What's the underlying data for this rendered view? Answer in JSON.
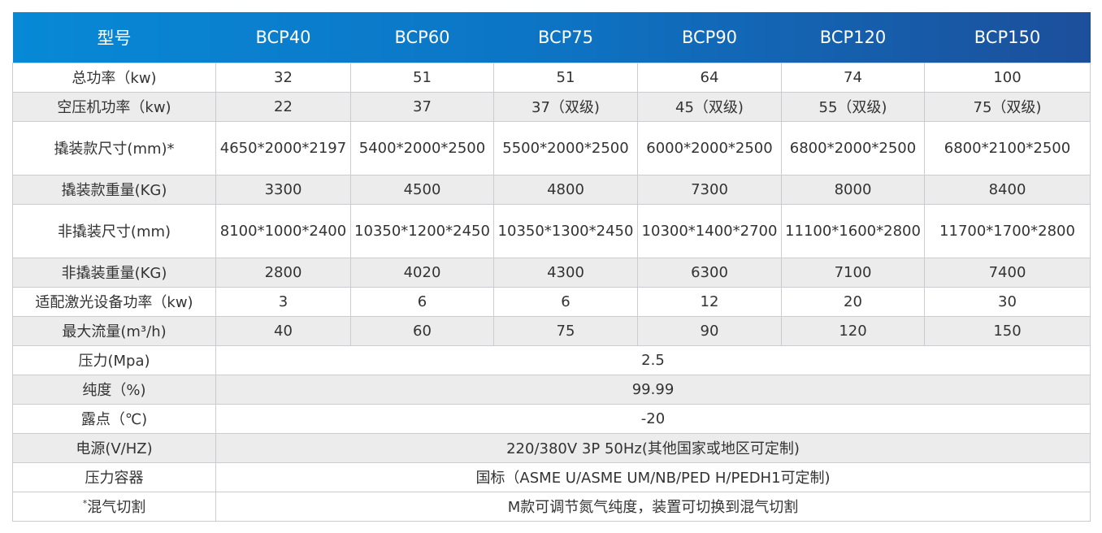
{
  "header": [
    "型号",
    "BCP40",
    "BCP60",
    "BCP75",
    "BCP90",
    "BCP120",
    "BCP150"
  ],
  "colors": {
    "header_start": "#0789d6",
    "header_end": "#1c4f9b",
    "stripe": "#ececec",
    "border": "#c9cdd3"
  },
  "rows": [
    {
      "label": "总功率（kw)",
      "values": [
        "32",
        "51",
        "51",
        "64",
        "74",
        "100"
      ],
      "tall": false,
      "gray": false
    },
    {
      "label": "空压机功率（kw)",
      "values": [
        "22",
        "37",
        "37（双级)",
        "45（双级)",
        "55（双级)",
        "75（双级)"
      ],
      "tall": false,
      "gray": true
    },
    {
      "label": "撬装款尺寸(mm)*",
      "values": [
        "4650*2000*2197",
        "5400*2000*2500",
        "5500*2000*2500",
        "6000*2000*2500",
        "6800*2000*2500",
        "6800*2100*2500"
      ],
      "tall": true,
      "gray": false
    },
    {
      "label": "撬装款重量(KG)",
      "values": [
        "3300",
        "4500",
        "4800",
        "7300",
        "8000",
        "8400"
      ],
      "tall": false,
      "gray": true
    },
    {
      "label": "非撬装尺寸(mm)",
      "values": [
        "8100*1000*2400",
        "10350*1200*2450",
        "10350*1300*2450",
        "10300*1400*2700",
        "11100*1600*2800",
        "11700*1700*2800"
      ],
      "tall": true,
      "gray": false
    },
    {
      "label": "非撬装重量(KG)",
      "values": [
        "2800",
        "4020",
        "4300",
        "6300",
        "7100",
        "7400"
      ],
      "tall": false,
      "gray": true
    },
    {
      "label": "适配激光设备功率（kw)",
      "values": [
        "3",
        "6",
        "6",
        "12",
        "20",
        "30"
      ],
      "tall": false,
      "gray": false
    },
    {
      "label": "最大流量(m³/h)",
      "values": [
        "40",
        "60",
        "75",
        "90",
        "120",
        "150"
      ],
      "tall": false,
      "gray": true
    },
    {
      "label": "压力(Mpa)",
      "span": "2.5",
      "gray": false
    },
    {
      "label": "纯度（%)",
      "span": "99.99",
      "gray": true
    },
    {
      "label": "露点（℃)",
      "span": "-20",
      "gray": false
    },
    {
      "label": "电源(V/HZ)",
      "span": "220/380V 3P 50Hz(其他国家或地区可定制)",
      "gray": true
    },
    {
      "label": "压力容器",
      "span": "国标（ASME U/ASME UM/NB/PED H/PEDH1可定制)",
      "gray": false
    },
    {
      "label": "混气切割",
      "label_prefix": "*",
      "span": "M款可调节氮气纯度，装置可切换到混气切割",
      "gray": false
    }
  ]
}
